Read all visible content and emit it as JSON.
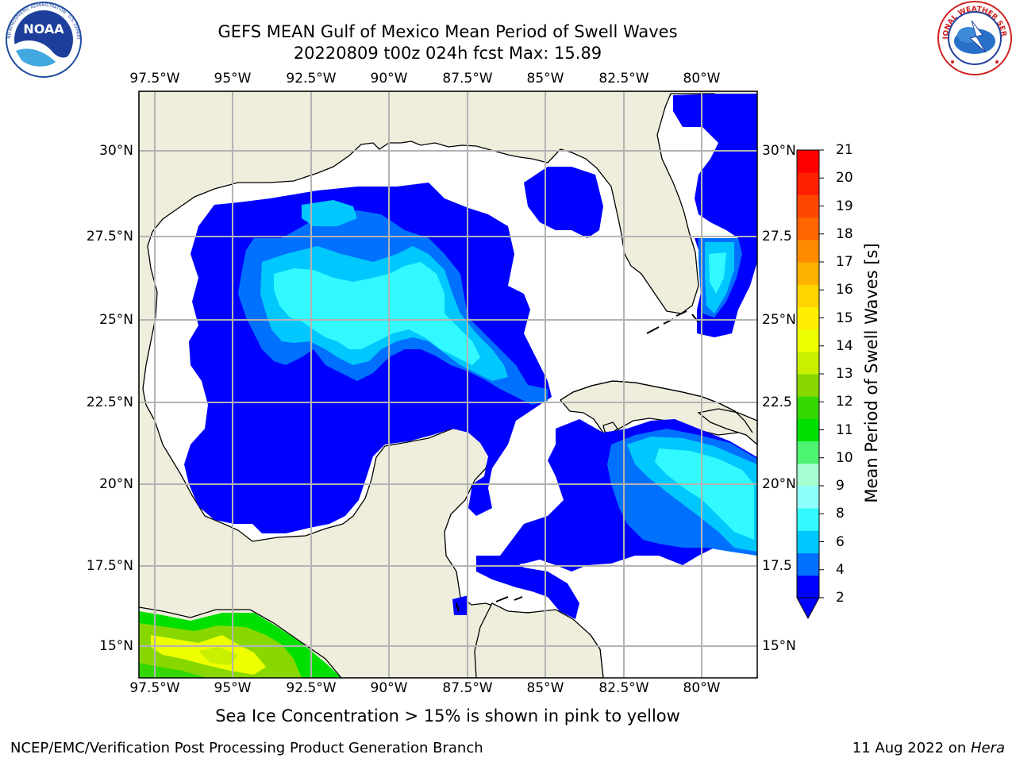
{
  "header": {
    "title_line1": "GEFS MEAN Gulf of Mexico Mean Period of Swell Waves",
    "title_line2": "20220809 t00z 024h fcst   Max: 15.89"
  },
  "logos": {
    "noaa": {
      "text": "NOAA",
      "ring_text": "NATIONAL OCEANIC AND ATMOSPHERIC ADMINISTRATION · U.S. DEPARTMENT OF COMMERCE"
    },
    "nws": {
      "ring_text": "NATIONAL WEATHER SERVICE"
    }
  },
  "map": {
    "lon_labels": [
      "97.5°W",
      "95°W",
      "92.5°W",
      "90°W",
      "87.5°W",
      "85°W",
      "82.5°W",
      "80°W"
    ],
    "lat_labels_left": [
      "30°N",
      "27.5°N",
      "25°N",
      "22.5°N",
      "20°N",
      "17.5°N",
      "15°N"
    ],
    "lat_labels_right": [
      "30°N",
      "27.5",
      "25°N",
      "22.5",
      "20°N",
      "17.5",
      "15°N"
    ],
    "land_color": "#efeedd",
    "grid_color": "#b3b3b3"
  },
  "colorbar": {
    "title": "Mean Period of Swell Waves [s]",
    "ticks": [
      "21",
      "20",
      "19",
      "18",
      "17",
      "16",
      "15",
      "14",
      "13",
      "12",
      "11",
      "10",
      "9",
      "8",
      "6",
      "4",
      "2"
    ],
    "colors": [
      "#0000ff",
      "#0071ff",
      "#00c8ff",
      "#31f9ff",
      "#8efffb",
      "#a6ffd0",
      "#4df472",
      "#00e000",
      "#33d800",
      "#88d800",
      "#c8f000",
      "#eeff00",
      "#ffee00",
      "#ffd400",
      "#ffb100",
      "#ff8c00",
      "#ff6600",
      "#ff4600",
      "#ff2000",
      "#ff0000"
    ]
  },
  "caption": "Sea Ice Concentration > 15% is shown in pink to yellow",
  "footer": {
    "left": "NCEP/EMC/Verification Post Processing Product Generation Branch",
    "right_date": "11 Aug 2022 on ",
    "right_host": "Hera"
  }
}
